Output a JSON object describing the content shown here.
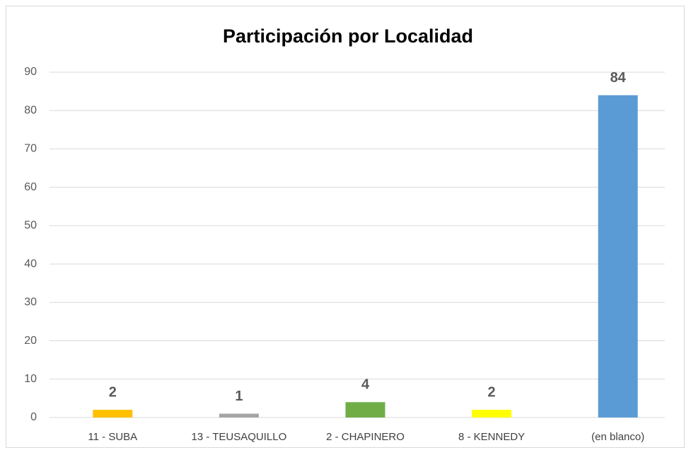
{
  "chart_data": {
    "type": "bar",
    "title": "Participación por Localidad",
    "categories": [
      "11 - SUBA",
      "13 - TEUSAQUILLO",
      "2 - CHAPINERO",
      "8 - KENNEDY",
      "(en blanco)"
    ],
    "values": [
      2,
      1,
      4,
      2,
      84
    ],
    "colors": [
      "#ffc000",
      "#a5a5a5",
      "#70ad47",
      "#ffff00",
      "#5b9bd5"
    ],
    "ylim": [
      0,
      90
    ],
    "yticks": [
      0,
      10,
      20,
      30,
      40,
      50,
      60,
      70,
      80,
      90
    ],
    "grid": true
  }
}
